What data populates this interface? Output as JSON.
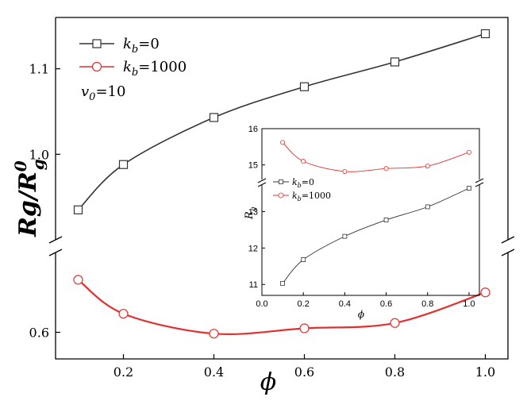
{
  "chart_data": [
    {
      "type": "line",
      "role": "main",
      "x": [
        0.1,
        0.2,
        0.4,
        0.6,
        0.8,
        1.0
      ],
      "series": [
        {
          "name_base": "k",
          "name_sub": "b",
          "name_rest": "=0",
          "color": "#333333",
          "marker": "square",
          "values": [
            0.935,
            0.988,
            1.043,
            1.079,
            1.108,
            1.141
          ]
        },
        {
          "name_base": "k",
          "name_sub": "b",
          "name_rest": "=1000",
          "color": "#e03030",
          "marker": "circle",
          "values": [
            0.679,
            0.628,
            0.598,
            0.606,
            0.614,
            0.66
          ]
        }
      ],
      "annotation": {
        "base": "v",
        "sub": "0",
        "rest": "=10"
      },
      "ylabel": {
        "base": "Rg/R",
        "sup": "0",
        "sub": "g"
      },
      "xlabel": "ϕ",
      "xlim": [
        0.05,
        1.05
      ],
      "xticks": [
        "0.2",
        "0.4",
        "0.6",
        "0.8",
        "1.0"
      ],
      "ybreak": true,
      "yticks_upper": [
        "1.0",
        "1.1"
      ],
      "yticks_lower": [
        "0.6"
      ]
    },
    {
      "type": "line",
      "role": "inset",
      "x": [
        0.1,
        0.2,
        0.4,
        0.6,
        0.8,
        1.0
      ],
      "series": [
        {
          "name_base": "k",
          "name_sub": "b",
          "name_rest": "=0",
          "color": "#333333",
          "marker": "square",
          "values": [
            11.03,
            11.68,
            12.32,
            12.77,
            13.13,
            13.64
          ]
        },
        {
          "name_base": "k",
          "name_sub": "b",
          "name_rest": "=1000",
          "color": "#e03030",
          "marker": "circle",
          "values": [
            15.62,
            15.1,
            14.82,
            14.9,
            14.97,
            15.35
          ]
        }
      ],
      "ylabel": {
        "base": "R",
        "sub": "g"
      },
      "xlabel": "ϕ",
      "xlim": [
        0.0,
        1.05
      ],
      "xticks": [
        "0.0",
        "0.2",
        "0.4",
        "0.6",
        "0.8",
        "1.0"
      ],
      "yticks": [
        "11",
        "12",
        "13",
        "15",
        "16"
      ],
      "ybreak": true
    }
  ]
}
